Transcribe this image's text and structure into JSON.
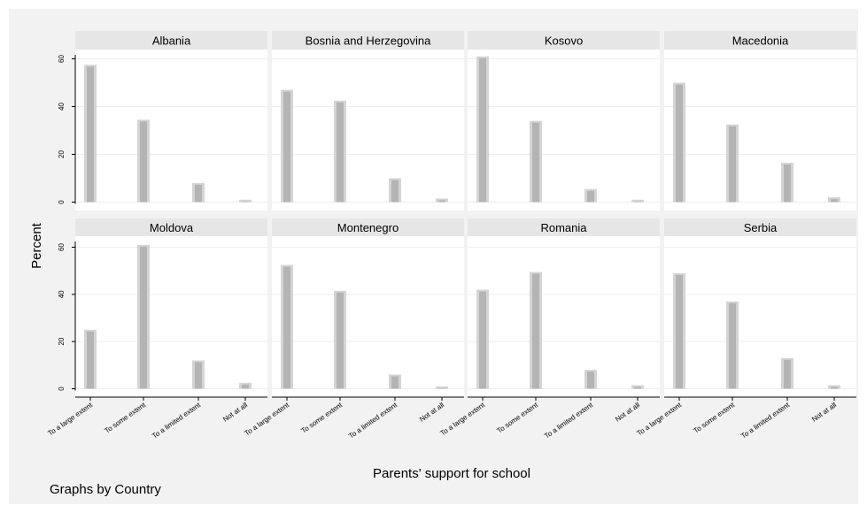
{
  "chart_data": {
    "type": "bar",
    "ylabel": "Percent",
    "xlabel": "Parents' support for school",
    "note": "Graphs by Country",
    "categories": [
      "To a large extent",
      "To some extent",
      "To a limited extent",
      "Not at all"
    ],
    "ylim": [
      0,
      65
    ],
    "yticks": [
      0,
      20,
      40,
      60
    ],
    "panels": [
      {
        "title": "Albania",
        "values": [
          57.5,
          34.5,
          8.0,
          1.0
        ]
      },
      {
        "title": "Bosnia and Herzegovina",
        "values": [
          47.0,
          42.5,
          10.0,
          1.5
        ]
      },
      {
        "title": "Kosovo",
        "values": [
          61.0,
          34.0,
          5.5,
          1.0
        ]
      },
      {
        "title": "Macedonia",
        "values": [
          50.0,
          32.5,
          16.5,
          2.0
        ]
      },
      {
        "title": "Moldova",
        "values": [
          25.0,
          61.0,
          12.0,
          2.5
        ]
      },
      {
        "title": "Montenegro",
        "values": [
          52.5,
          41.5,
          6.0,
          1.0
        ]
      },
      {
        "title": "Romania",
        "values": [
          42.0,
          49.5,
          8.0,
          1.5
        ]
      },
      {
        "title": "Serbia",
        "values": [
          49.0,
          37.0,
          13.0,
          1.5
        ]
      }
    ]
  }
}
